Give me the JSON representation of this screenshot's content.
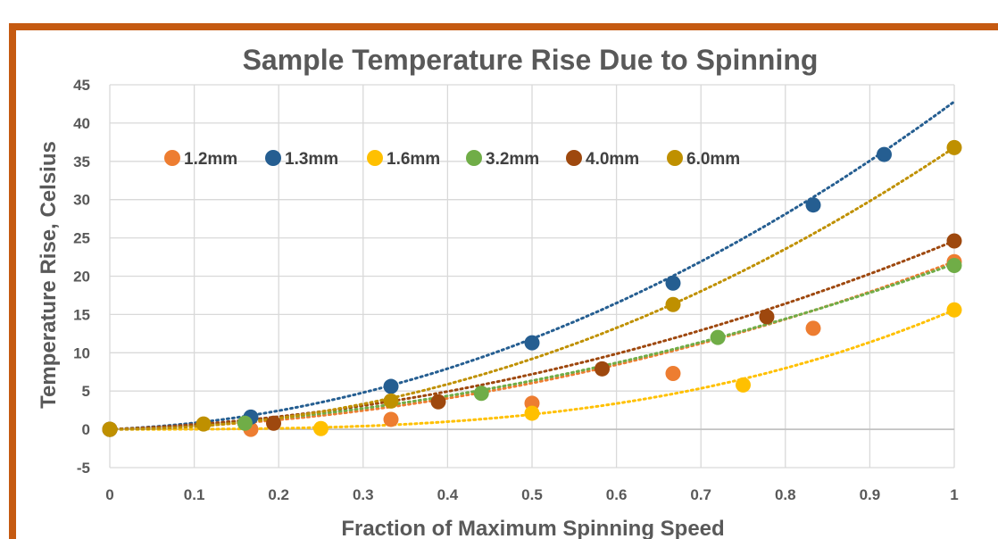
{
  "chart_data": {
    "type": "scatter",
    "title": "Sample Temperature Rise Due to Spinning",
    "xlabel": "Fraction of Maximum Spinning Speed",
    "ylabel": "Temperature Rise, Celsius",
    "xlim": [
      0,
      1
    ],
    "ylim": [
      -5,
      45
    ],
    "xticks": [
      "0",
      "0.1",
      "0.2",
      "0.3",
      "0.4",
      "0.5",
      "0.6",
      "0.7",
      "0.8",
      "0.9",
      "1"
    ],
    "yticks": [
      "-5",
      "0",
      "5",
      "10",
      "15",
      "20",
      "25",
      "30",
      "35",
      "40",
      "45"
    ],
    "grid": true,
    "legend_position": "top-left inside",
    "trendlines": "dotted",
    "series": [
      {
        "name": "1.2mm",
        "color": "#ed7d31",
        "x": [
          0,
          0.167,
          0.333,
          0.5,
          0.667,
          0.833,
          1.0
        ],
        "y": [
          0,
          0,
          1.3,
          3.4,
          7.3,
          13.2,
          21.9
        ],
        "trend": [
          0,
          2.3,
          19.6
        ]
      },
      {
        "name": "1.3mm",
        "color": "#255e91",
        "x": [
          0,
          0.167,
          0.333,
          0.5,
          0.667,
          0.833,
          0.917
        ],
        "y": [
          0,
          1.6,
          5.6,
          11.3,
          19.1,
          29.3,
          35.9
        ],
        "trend": [
          0,
          4.5,
          38.3
        ]
      },
      {
        "name": "1.6mm",
        "color": "#ffc000",
        "x": [
          0,
          0.25,
          0.5,
          0.75,
          1.0
        ],
        "y": [
          0,
          0.1,
          2.1,
          5.8,
          15.6
        ],
        "trend": [
          0,
          0,
          0,
          15.6
        ]
      },
      {
        "name": "3.2mm",
        "color": "#70ad47",
        "x": [
          0,
          0.16,
          0.44,
          0.72,
          1.0
        ],
        "y": [
          0,
          0.8,
          4.7,
          12.0,
          21.4
        ],
        "trend": [
          0,
          3.8,
          17.8
        ]
      },
      {
        "name": "4.0mm",
        "color": "#9e480e",
        "x": [
          0,
          0.194,
          0.389,
          0.583,
          0.778,
          1.0
        ],
        "y": [
          0,
          0.8,
          3.6,
          7.9,
          14.7,
          24.6
        ],
        "trend": [
          0,
          4.2,
          20.4
        ]
      },
      {
        "name": "6.0mm",
        "color": "#bf9000",
        "x": [
          0,
          0.111,
          0.333,
          0.667,
          1.0
        ],
        "y": [
          0,
          0.7,
          3.7,
          16.3,
          36.8
        ],
        "trend": [
          0,
          0,
          36.8
        ]
      }
    ]
  }
}
